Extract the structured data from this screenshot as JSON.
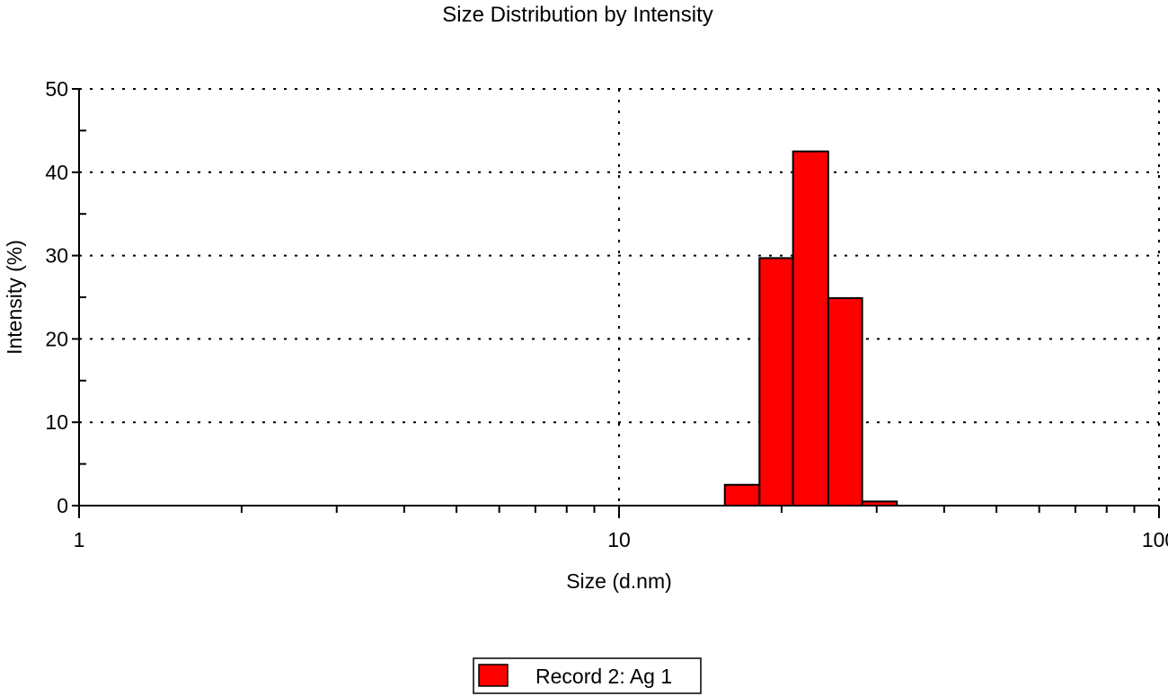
{
  "chart_data": {
    "type": "bar",
    "title": "Size Distribution by Intensity",
    "xlabel": "Size (d.nm)",
    "ylabel": "Intensity (%)",
    "xscale": "log",
    "xlim": [
      1,
      100
    ],
    "ylim": [
      0,
      50
    ],
    "x_tick_labels": [
      "1",
      "10",
      "100"
    ],
    "y_tick_labels": [
      "0",
      "10",
      "20",
      "30",
      "40",
      "50"
    ],
    "grid": "dotted",
    "legend_position": "bottom-center",
    "series": [
      {
        "name": "Record 2: Ag 1",
        "color": "#ff0000",
        "bin_edges": [
          15.7,
          18.2,
          21.0,
          24.4,
          28.2,
          32.7
        ],
        "values": [
          2.5,
          29.7,
          42.5,
          24.9,
          0.5
        ]
      }
    ]
  }
}
